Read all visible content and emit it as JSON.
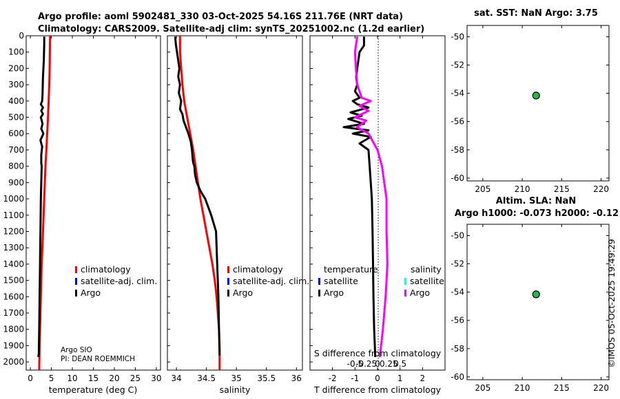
{
  "header": {
    "line1": "Argo profile: aoml 5902481_330 03-Oct-2025 54.16S 211.76E (NRT data)",
    "line2": "Climatology: CARS2009. Satellite-adj clim: synTS_20251002.nc (1.2d earlier)"
  },
  "footer": {
    "credit1": "Argo SIO",
    "credit2": "PI: DEAN ROEMMICH",
    "stamp": "©IMOS 05-Oct-2025 19:49:29"
  },
  "colors": {
    "argo": "#000000",
    "climatology": "#ff0000",
    "satellite": "#0000ff",
    "salinity_argo": "#ff00ff",
    "salinity_satellite": "#00ffff",
    "marker": "#22bb44"
  },
  "chart_data": [
    {
      "type": "line",
      "id": "temperature",
      "xlabel": "temperature (deg C)",
      "ylabel": "",
      "xlim": [
        -1,
        31
      ],
      "ylim": [
        2050,
        0
      ],
      "xticks": [
        0,
        5,
        10,
        15,
        20,
        25,
        30
      ],
      "xtick_labels": [
        "0",
        "5",
        "10",
        "15",
        "20",
        "25",
        "30"
      ],
      "yticks": [
        0,
        100,
        200,
        300,
        400,
        500,
        600,
        700,
        800,
        900,
        1000,
        1100,
        1200,
        1300,
        1400,
        1500,
        1600,
        1700,
        1800,
        1900,
        2000
      ],
      "ytick_labels": [
        "0",
        "100",
        "200",
        "300",
        "400",
        "500",
        "600",
        "700",
        "800",
        "900",
        "1000",
        "1100",
        "1200",
        "1300",
        "1400",
        "1500",
        "1600",
        "1700",
        "1800",
        "1900",
        "2000"
      ],
      "legend": [
        "climatology",
        "satellite-adj. clim.",
        "Argo"
      ],
      "series": [
        {
          "name": "climatology",
          "color": "#ff0000",
          "x": [
            4.7,
            4.65,
            4.6,
            4.5,
            4.35,
            4.2,
            4.0,
            3.8,
            3.6,
            3.45,
            3.3,
            3.15,
            3.0,
            2.85,
            2.7,
            2.6,
            2.5,
            2.4,
            2.3,
            2.2,
            2.1
          ],
          "y": [
            0,
            100,
            200,
            300,
            400,
            500,
            600,
            700,
            800,
            900,
            1000,
            1100,
            1200,
            1300,
            1400,
            1500,
            1600,
            1700,
            1800,
            1900,
            2050
          ]
        },
        {
          "name": "Argo",
          "color": "#000000",
          "x": [
            3.3,
            3.3,
            3.25,
            3.2,
            3.1,
            3.0,
            2.95,
            2.9,
            2.85,
            2.8,
            2.5,
            3.0,
            2.6,
            3.0,
            2.5,
            2.9,
            2.6,
            3.1,
            2.4,
            2.8,
            2.6,
            2.6,
            2.7,
            2.6,
            2.5,
            2.4,
            2.3,
            2.2,
            2.1,
            2.0,
            1.9
          ],
          "y": [
            5,
            50,
            100,
            150,
            200,
            250,
            300,
            350,
            380,
            400,
            420,
            440,
            460,
            480,
            500,
            540,
            570,
            600,
            640,
            680,
            730,
            780,
            800,
            900,
            1000,
            1200,
            1400,
            1600,
            1800,
            1950,
            1970
          ]
        }
      ]
    },
    {
      "type": "line",
      "id": "salinity",
      "xlabel": "salinity",
      "xlim": [
        33.85,
        36.1
      ],
      "ylim": [
        2050,
        0
      ],
      "xticks": [
        34,
        34.5,
        35,
        35.5,
        36
      ],
      "xtick_labels": [
        "34",
        "34.5",
        "35",
        "35.5",
        "36"
      ],
      "legend": [
        "climatology",
        "satellite-adj. clim.",
        "Argo"
      ],
      "series": [
        {
          "name": "climatology",
          "color": "#ff0000",
          "x": [
            34.06,
            34.06,
            34.08,
            34.1,
            34.13,
            34.18,
            34.23,
            34.28,
            34.32,
            34.36,
            34.4,
            34.45,
            34.5,
            34.55,
            34.6,
            34.64,
            34.67,
            34.69,
            34.71,
            34.72,
            34.72
          ],
          "y": [
            0,
            100,
            200,
            300,
            400,
            500,
            600,
            700,
            800,
            900,
            1000,
            1100,
            1200,
            1300,
            1400,
            1500,
            1600,
            1700,
            1800,
            1900,
            2050
          ]
        },
        {
          "name": "Argo",
          "color": "#000000",
          "x": [
            33.98,
            33.99,
            34.01,
            34.03,
            34.05,
            34.03,
            34.06,
            34.04,
            34.08,
            34.06,
            34.1,
            34.12,
            34.16,
            34.2,
            34.24,
            34.26,
            34.27,
            34.28,
            34.3,
            34.31,
            34.34,
            34.4,
            34.48,
            34.58,
            34.66,
            34.68,
            34.7,
            34.71,
            34.72
          ],
          "y": [
            5,
            50,
            100,
            150,
            200,
            250,
            300,
            350,
            400,
            450,
            480,
            520,
            560,
            600,
            650,
            700,
            750,
            780,
            800,
            850,
            900,
            950,
            1000,
            1100,
            1200,
            1400,
            1600,
            1800,
            1960
          ]
        }
      ]
    },
    {
      "type": "line",
      "id": "difference",
      "xlabel": "T difference from climatology",
      "top_label": "S difference from climatology",
      "xlim": [
        -3.0,
        3.0
      ],
      "ylim": [
        2050,
        0
      ],
      "xticks": [
        -2,
        -1,
        0,
        1,
        2
      ],
      "xtick_labels": [
        "-2",
        "-1",
        "0",
        "1",
        "2"
      ],
      "s_xticks": [
        -0.5,
        -0.25,
        0,
        0.25,
        0.5
      ],
      "s_xtick_labels": [
        "-0.5",
        "-0.25",
        "0",
        "0.25",
        "0.5"
      ],
      "legend_temperature_title": "temperature",
      "legend_salinity_title": "salinity",
      "legend_temperature": [
        "satellite",
        "Argo"
      ],
      "legend_salinity": [
        "satellite",
        "Argo"
      ],
      "series": [
        {
          "name": "temperature Argo",
          "color": "#000000",
          "x": [
            -0.6,
            -0.6,
            -0.8,
            -0.9,
            -0.95,
            -0.9,
            -1.0,
            -0.8,
            -1.1,
            -0.9,
            -0.4,
            -1.2,
            -0.7,
            -1.3,
            -0.6,
            -1.5,
            -0.4,
            -1.1,
            -0.3,
            -0.8,
            -0.4,
            -0.35,
            -0.3,
            -0.25,
            -0.22,
            -0.2,
            -0.18,
            -0.15,
            -0.12,
            -0.1
          ],
          "y": [
            5,
            60,
            100,
            200,
            250,
            300,
            340,
            380,
            400,
            420,
            440,
            470,
            490,
            510,
            540,
            560,
            580,
            600,
            620,
            660,
            700,
            800,
            900,
            1000,
            1200,
            1400,
            1600,
            1800,
            1900,
            1970
          ]
        },
        {
          "name": "salinity Argo",
          "color": "#ff00ff",
          "x": [
            -0.45,
            -0.5,
            -0.48,
            -0.45,
            -0.35,
            -0.15,
            -0.4,
            -0.2,
            -0.5,
            -0.25,
            -0.45,
            -0.2,
            -0.1,
            0.0,
            0.1,
            0.15,
            0.2,
            0.2,
            0.22,
            0.18,
            0.12,
            0.08,
            0.05
          ],
          "y": [
            5,
            100,
            200,
            300,
            380,
            400,
            430,
            460,
            500,
            520,
            560,
            600,
            650,
            700,
            800,
            900,
            1000,
            1200,
            1400,
            1600,
            1800,
            1900,
            1970
          ]
        }
      ]
    },
    {
      "type": "scatter",
      "id": "sst-map",
      "title": "sat. SST: NaN Argo: 3.75",
      "xlim": [
        203,
        221
      ],
      "ylim": [
        -60.2,
        -49.2
      ],
      "xticks": [
        205,
        210,
        215,
        220
      ],
      "xtick_labels": [
        "205",
        "210",
        "215",
        "220"
      ],
      "yticks": [
        -50,
        -52,
        -54,
        -56,
        -58,
        -60
      ],
      "ytick_labels": [
        "-50",
        "-52",
        "-54",
        "-56",
        "-58",
        "-60"
      ],
      "points": [
        {
          "x": 211.76,
          "y": -54.16
        }
      ]
    },
    {
      "type": "scatter",
      "id": "sla-map",
      "title1": "Altim. SLA: NaN",
      "title2": "Argo h1000: -0.073 h2000: -0.12",
      "xlim": [
        203,
        221
      ],
      "ylim": [
        -60.2,
        -49.2
      ],
      "xticks": [
        205,
        210,
        215,
        220
      ],
      "xtick_labels": [
        "205",
        "210",
        "215",
        "220"
      ],
      "yticks": [
        -50,
        -52,
        -54,
        -56,
        -58,
        -60
      ],
      "ytick_labels": [
        "-50",
        "-52",
        "-54",
        "-56",
        "-58",
        "-60"
      ],
      "points": [
        {
          "x": 211.76,
          "y": -54.16
        }
      ]
    }
  ]
}
